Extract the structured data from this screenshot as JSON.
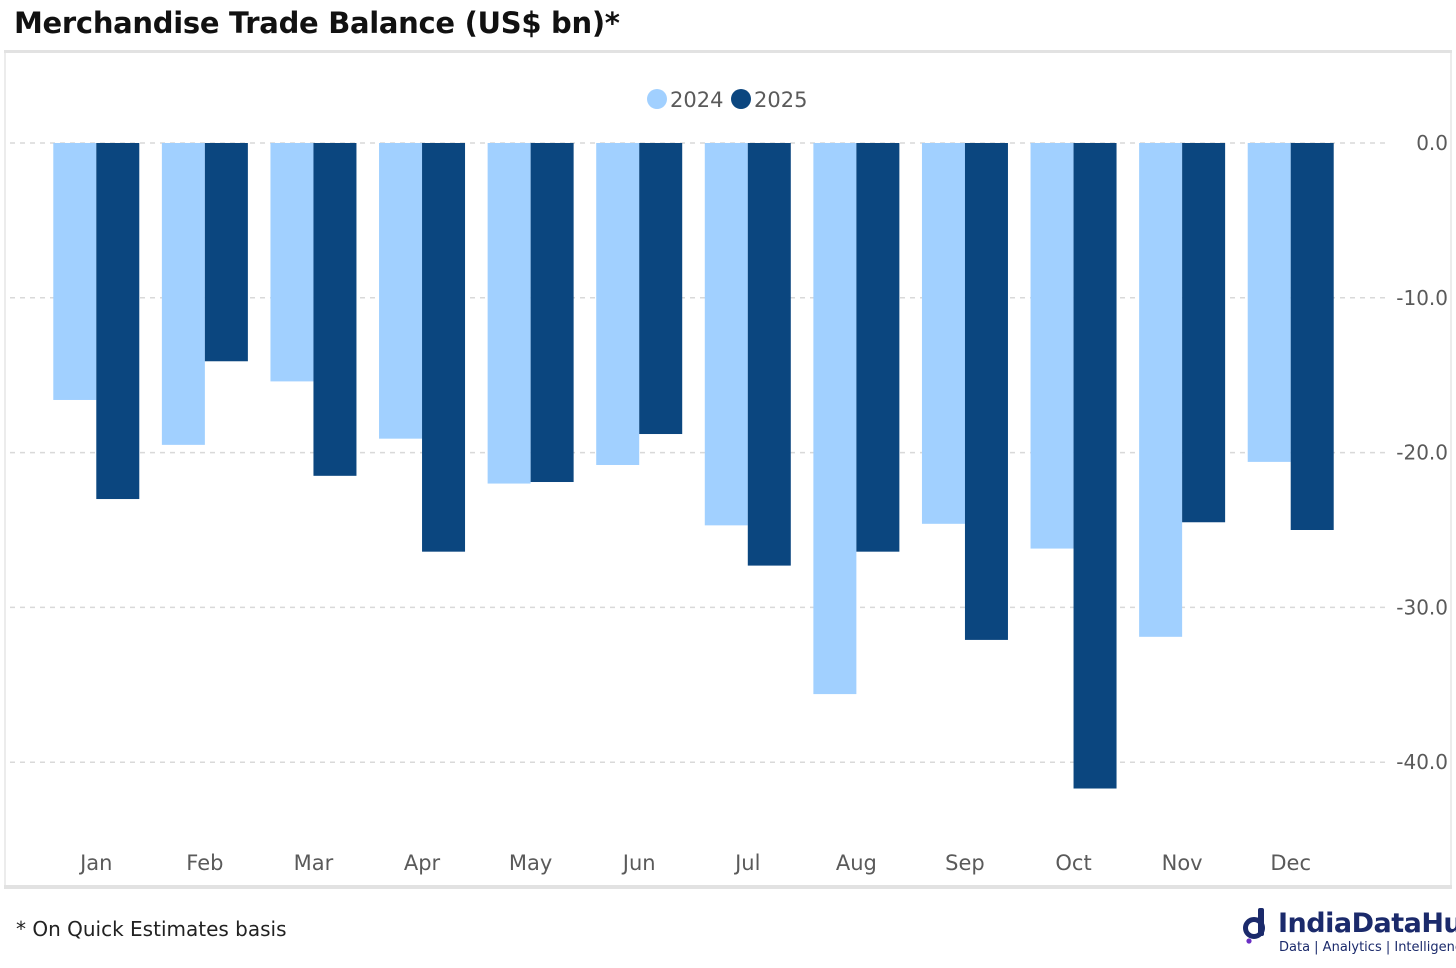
{
  "title": "Merchandise Trade Balance (US$ bn)*",
  "footnote": "* On Quick Estimates basis",
  "brand": {
    "name": "IndiaDataHub",
    "tagline": "Data | Analytics | Intelligence",
    "icon": "indiadatahub-logo-icon"
  },
  "colors": {
    "series_2024": "#a1d0ff",
    "series_2025": "#0b467f",
    "grid": "#d9d9d9",
    "axis_text": "#5a5a5a"
  },
  "chart_data": {
    "type": "bar",
    "title": "Merchandise Trade Balance (US$ bn)*",
    "xlabel": "",
    "ylabel": "",
    "categories": [
      "Jan",
      "Feb",
      "Mar",
      "Apr",
      "May",
      "Jun",
      "Jul",
      "Aug",
      "Sep",
      "Oct",
      "Nov",
      "Dec"
    ],
    "series": [
      {
        "name": "2024",
        "values": [
          -16.6,
          -19.5,
          -15.4,
          -19.1,
          -22.0,
          -20.8,
          -24.7,
          -35.6,
          -24.6,
          -26.2,
          -31.9,
          -20.6
        ]
      },
      {
        "name": "2025",
        "values": [
          -23.0,
          -14.1,
          -21.5,
          -26.4,
          -21.9,
          -18.8,
          -27.3,
          -26.4,
          -32.1,
          -41.7,
          -24.5,
          -25.0
        ]
      }
    ],
    "ylim": [
      -44.0,
      0.0
    ],
    "yticks": [
      "0.0",
      "-10.0",
      "-20.0",
      "-30.0",
      "-40.0"
    ],
    "ytick_values": [
      0,
      -10,
      -20,
      -30,
      -40
    ],
    "grid": true,
    "legend": "top-center",
    "y_axis_side": "right"
  }
}
